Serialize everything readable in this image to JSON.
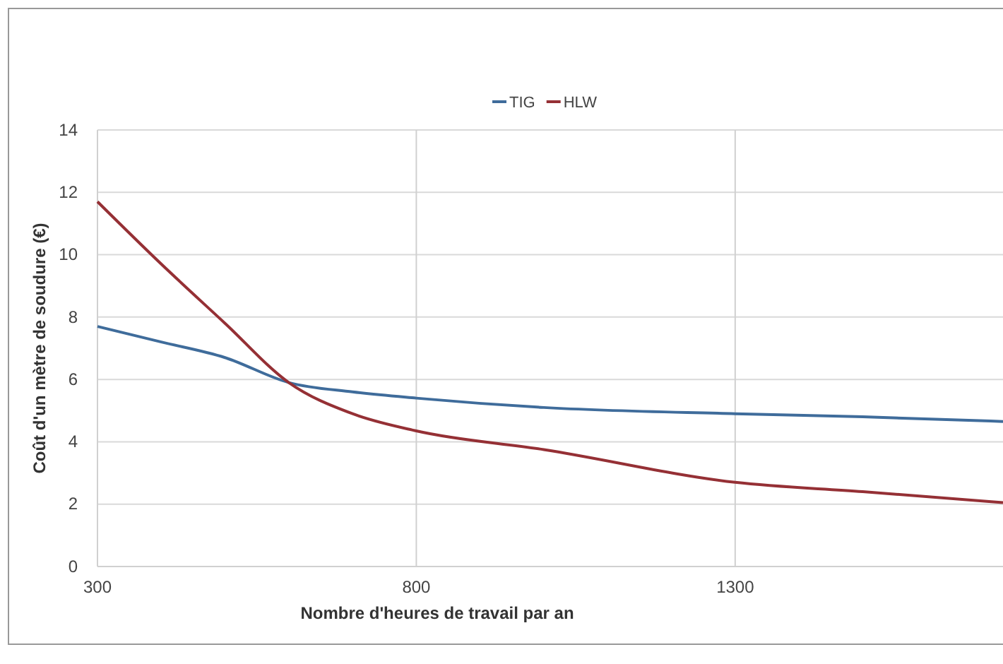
{
  "chart_data": {
    "type": "line",
    "xlabel": "Nombre d'heures de travail par an",
    "ylabel": "Coût d'un mètre de soudure (€)",
    "xlim": [
      300,
      1720
    ],
    "xticks": [
      300,
      800,
      1300
    ],
    "ylim": [
      0,
      14
    ],
    "yticks": [
      0,
      2,
      4,
      6,
      8,
      10,
      12,
      14
    ],
    "grid": true,
    "legend": "top",
    "marker": "none",
    "line_style": "solid",
    "series": [
      {
        "name": "TIG",
        "color": "#3f6c9b",
        "x": [
          300,
          400,
          500,
          600,
          700,
          800,
          1000,
          1300,
          1500,
          1720
        ],
        "values": [
          7.7,
          7.2,
          6.7,
          5.9,
          5.6,
          5.4,
          5.1,
          4.9,
          4.8,
          4.65
        ]
      },
      {
        "name": "HLW",
        "color": "#953035",
        "x": [
          300,
          400,
          500,
          600,
          700,
          800,
          1000,
          1300,
          1500,
          1720
        ],
        "values": [
          11.7,
          9.7,
          7.8,
          5.9,
          4.9,
          4.35,
          3.75,
          2.7,
          2.4,
          2.05
        ]
      }
    ]
  }
}
